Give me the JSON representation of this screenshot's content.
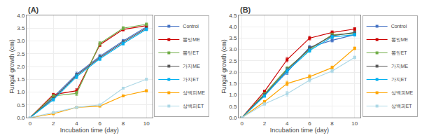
{
  "chart_data": [
    {
      "type": "line",
      "title": "(A)",
      "x_label": "Incubation time (day)",
      "y_label": "Fungal growth (cm)",
      "x": [
        0,
        2,
        4,
        6,
        8,
        10
      ],
      "series": [
        {
          "name": "Control",
          "color": "#4472C4",
          "values": [
            0.0,
            0.8,
            1.7,
            2.4,
            3.0,
            3.55
          ],
          "errors": [
            0.0,
            0.05,
            0.08,
            0.07,
            0.06,
            0.05
          ]
        },
        {
          "name": "뽕잎ME",
          "color": "#CC0000",
          "values": [
            0.0,
            0.9,
            1.05,
            2.85,
            3.45,
            3.6
          ],
          "errors": [
            0.0,
            0.05,
            0.08,
            0.07,
            0.06,
            0.05
          ]
        },
        {
          "name": "뽕잎ET",
          "color": "#70AD47",
          "values": [
            0.0,
            0.85,
            0.95,
            2.9,
            3.5,
            3.65
          ],
          "errors": [
            0.0,
            0.05,
            0.08,
            0.07,
            0.06,
            0.05
          ]
        },
        {
          "name": "가지ME",
          "color": "#595959",
          "values": [
            0.0,
            0.75,
            1.65,
            2.35,
            2.95,
            3.5
          ],
          "errors": [
            0.0,
            0.05,
            0.08,
            0.07,
            0.06,
            0.05
          ]
        },
        {
          "name": "가지ET",
          "color": "#00B0F0",
          "values": [
            0.0,
            0.7,
            1.6,
            2.3,
            2.9,
            3.45
          ],
          "errors": [
            0.0,
            0.05,
            0.08,
            0.07,
            0.06,
            0.05
          ]
        },
        {
          "name": "상백피ME",
          "color": "#FFA500",
          "values": [
            0.0,
            0.15,
            0.4,
            0.45,
            0.85,
            1.05
          ],
          "errors": [
            0.0,
            0.02,
            0.03,
            0.03,
            0.04,
            0.04
          ]
        },
        {
          "name": "상백피ET",
          "color": "#ADD8E6",
          "values": [
            0.0,
            0.2,
            0.4,
            0.5,
            1.15,
            1.5
          ],
          "errors": [
            0.0,
            0.02,
            0.03,
            0.03,
            0.04,
            0.04
          ]
        }
      ],
      "xlim": [
        -0.3,
        10.5
      ],
      "xticks": [
        0,
        2,
        4,
        6,
        8,
        10
      ],
      "ylim": [
        0,
        4.0
      ],
      "yticks": [
        {
          "value": 0,
          "label": "0.0"
        },
        0.5,
        {
          "value": 1.0,
          "label": "1.0"
        },
        1.5,
        {
          "value": 2.0,
          "label": "2.0"
        },
        2.5,
        {
          "value": 3.0,
          "label": "3.0"
        },
        3.5,
        {
          "value": 4.0,
          "label": "4.0"
        }
      ],
      "grid": true,
      "legend": "right",
      "marker": "square"
    },
    {
      "type": "line",
      "title": "(B)",
      "x_label": "Incubation time (day)",
      "y_label": "Fungal growth (cm)",
      "x": [
        0,
        2,
        4,
        6,
        8,
        10
      ],
      "series": [
        {
          "name": "Control",
          "color": "#4472C4",
          "values": [
            0.0,
            1.0,
            2.0,
            3.1,
            3.4,
            3.65
          ],
          "errors": [
            0.0,
            0.05,
            0.1,
            0.08,
            0.07,
            0.06
          ]
        },
        {
          "name": "뽕잎ME",
          "color": "#CC0000",
          "values": [
            0.0,
            1.15,
            2.55,
            3.5,
            3.75,
            3.9
          ],
          "errors": [
            0.0,
            0.05,
            0.1,
            0.08,
            0.07,
            0.06
          ]
        },
        {
          "name": "뽕잎ET",
          "color": "#70AD47",
          "values": [
            0.0,
            1.05,
            2.15,
            3.0,
            3.65,
            3.7
          ],
          "errors": [
            0.0,
            0.05,
            0.1,
            0.08,
            0.07,
            0.06
          ]
        },
        {
          "name": "가지ME",
          "color": "#595959",
          "values": [
            0.0,
            1.0,
            2.1,
            3.05,
            3.6,
            3.75
          ],
          "errors": [
            0.0,
            0.05,
            0.1,
            0.08,
            0.07,
            0.06
          ]
        },
        {
          "name": "가지ET",
          "color": "#00B0F0",
          "values": [
            0.0,
            0.95,
            2.05,
            2.95,
            3.55,
            3.65
          ],
          "errors": [
            0.0,
            0.05,
            0.1,
            0.08,
            0.07,
            0.06
          ]
        },
        {
          "name": "상백피ME",
          "color": "#FFA500",
          "values": [
            0.0,
            0.7,
            1.5,
            1.8,
            2.2,
            3.05
          ],
          "errors": [
            0.0,
            0.05,
            0.1,
            0.08,
            0.07,
            0.06
          ]
        },
        {
          "name": "상백피ET",
          "color": "#ADD8E6",
          "values": [
            0.0,
            0.6,
            1.05,
            1.65,
            2.05,
            2.65
          ],
          "errors": [
            0.0,
            0.05,
            0.1,
            0.08,
            0.07,
            0.06
          ]
        }
      ],
      "xlim": [
        -0.3,
        10.5
      ],
      "xticks": [
        0,
        2,
        4,
        6,
        8,
        10
      ],
      "ylim": [
        0,
        4.5
      ],
      "yticks": [
        {
          "value": 0,
          "label": "0.0"
        },
        0.5,
        {
          "value": 1.0,
          "label": "1.0"
        },
        1.5,
        {
          "value": 2.0,
          "label": "2.0"
        },
        2.5,
        {
          "value": 3.0,
          "label": "3.0"
        },
        3.5,
        {
          "value": 4.0,
          "label": "4.0"
        },
        4.5
      ],
      "grid": true,
      "legend": "right",
      "marker": "square"
    }
  ]
}
